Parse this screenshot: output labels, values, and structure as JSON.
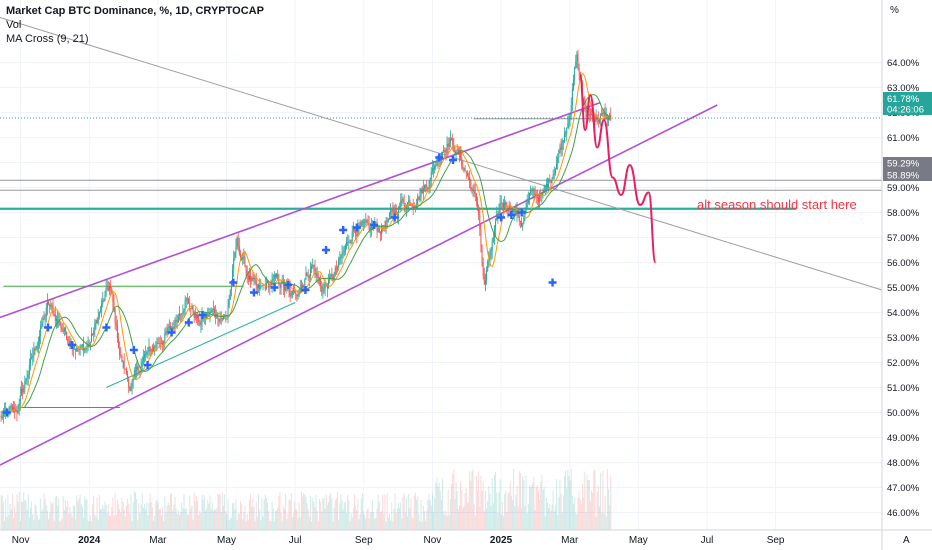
{
  "legend": {
    "title": "Market Cap BTC Dominance, %, 1D, CRYPTOCAP",
    "vol": "Vol",
    "ma_cross": "MA Cross (9, 21)"
  },
  "axis": {
    "unit": "%",
    "auto_label": "A"
  },
  "annotation_text": "alt season should start here",
  "price_tags": {
    "current_value": "61.78%",
    "countdown": "04:26:06",
    "level_1": "59.29%",
    "level_2": "58.89%"
  },
  "colors": {
    "up": "#26a69a",
    "down": "#ef5350",
    "channel": "#b24fd6",
    "support": "#26b0a0",
    "projection": "#e91e63",
    "annotation": "#f23645",
    "ma_fast": "#ff9800",
    "ma_slow": "#43a047",
    "cross": "#2962ff",
    "trend": "#9e9e9e"
  },
  "chart_data": {
    "type": "candlestick",
    "title": "Market Cap BTC Dominance, %, 1D, CRYPTOCAP",
    "ylabel": "%",
    "ylim": [
      45.3,
      66.5
    ],
    "y_ticks": [
      "46.00%",
      "47.00%",
      "48.00%",
      "49.00%",
      "50.00%",
      "51.00%",
      "52.00%",
      "53.00%",
      "54.00%",
      "55.00%",
      "56.00%",
      "57.00%",
      "58.00%",
      "59.00%",
      "60.00%",
      "61.00%",
      "62.00%",
      "63.00%",
      "64.00%"
    ],
    "x_ticks": [
      "Nov",
      "2024",
      "Mar",
      "May",
      "Jul",
      "Sep",
      "Nov",
      "2025",
      "Mar",
      "May",
      "Jul",
      "Sep"
    ],
    "x_tick_months": [
      0,
      2,
      4,
      6,
      8,
      10,
      12,
      14,
      16,
      18,
      20,
      22
    ],
    "x_range_months": [
      -0.6,
      25.1
    ],
    "last_month": 17.2,
    "price_path": [
      [
        -0.6,
        49.8
      ],
      [
        -0.1,
        50.1
      ],
      [
        0.3,
        52.0
      ],
      [
        0.8,
        54.3
      ],
      [
        1.3,
        53.2
      ],
      [
        1.7,
        52.5
      ],
      [
        2.0,
        52.7
      ],
      [
        2.3,
        54.0
      ],
      [
        2.6,
        55.1
      ],
      [
        2.9,
        52.3
      ],
      [
        3.2,
        51.0
      ],
      [
        3.6,
        52.2
      ],
      [
        4.0,
        52.8
      ],
      [
        4.4,
        53.3
      ],
      [
        4.8,
        54.6
      ],
      [
        5.2,
        53.6
      ],
      [
        5.6,
        54.0
      ],
      [
        6.0,
        53.8
      ],
      [
        6.3,
        56.8
      ],
      [
        6.6,
        55.6
      ],
      [
        6.9,
        54.8
      ],
      [
        7.2,
        55.1
      ],
      [
        7.5,
        55.3
      ],
      [
        7.9,
        54.6
      ],
      [
        8.2,
        55.2
      ],
      [
        8.5,
        55.9
      ],
      [
        8.8,
        54.9
      ],
      [
        9.1,
        55.4
      ],
      [
        9.4,
        56.3
      ],
      [
        9.7,
        57.4
      ],
      [
        10.1,
        57.3
      ],
      [
        10.5,
        57.4
      ],
      [
        10.8,
        57.8
      ],
      [
        11.1,
        58.4
      ],
      [
        11.5,
        58.5
      ],
      [
        11.9,
        59.3
      ],
      [
        12.2,
        60.4
      ],
      [
        12.5,
        60.9
      ],
      [
        12.8,
        60.2
      ],
      [
        13.1,
        59.2
      ],
      [
        13.35,
        58.0
      ],
      [
        13.5,
        55.0
      ],
      [
        13.7,
        56.4
      ],
      [
        14.0,
        58.4
      ],
      [
        14.3,
        58.3
      ],
      [
        14.6,
        57.6
      ],
      [
        14.9,
        58.8
      ],
      [
        15.2,
        58.6
      ],
      [
        15.5,
        59.6
      ],
      [
        15.8,
        60.9
      ],
      [
        16.0,
        62.1
      ],
      [
        16.2,
        64.2
      ],
      [
        16.45,
        62.0
      ],
      [
        16.8,
        61.8
      ],
      [
        17.2,
        61.78
      ]
    ],
    "price_noise": 0.42,
    "cross_markers": [
      [
        -0.4,
        50.0
      ],
      [
        0.8,
        53.4
      ],
      [
        1.5,
        52.7
      ],
      [
        2.5,
        53.4
      ],
      [
        3.3,
        52.5
      ],
      [
        3.7,
        51.9
      ],
      [
        4.4,
        53.2
      ],
      [
        4.9,
        53.6
      ],
      [
        5.3,
        53.9
      ],
      [
        6.2,
        55.2
      ],
      [
        6.8,
        54.8
      ],
      [
        7.4,
        55.0
      ],
      [
        7.8,
        55.1
      ],
      [
        8.3,
        54.9
      ],
      [
        8.9,
        56.5
      ],
      [
        9.4,
        57.3
      ],
      [
        9.8,
        57.4
      ],
      [
        10.3,
        57.5
      ],
      [
        10.9,
        57.8
      ],
      [
        12.2,
        60.2
      ],
      [
        12.6,
        60.1
      ],
      [
        14.0,
        57.8
      ],
      [
        14.3,
        57.9
      ],
      [
        14.6,
        58.0
      ],
      [
        15.5,
        55.2
      ]
    ],
    "horizontal_levels": [
      {
        "name": "support-zone",
        "value": 58.15,
        "from_month": -0.6,
        "to_month": 22.6
      },
      {
        "name": "level-59.29",
        "value": 59.29,
        "from_month": -0.6,
        "to_month": 25.1
      },
      {
        "name": "level-58.89",
        "value": 58.89,
        "from_month": -0.6,
        "to_month": 25.1
      },
      {
        "name": "range-top",
        "value": 55.05,
        "from_month": -0.5,
        "to_month": 6.5
      },
      {
        "name": "range-bottom",
        "value": 50.2,
        "from_month": 0.0,
        "to_month": 2.9
      },
      {
        "name": "peak-line",
        "value": 61.75,
        "from_month": 13.2,
        "to_month": 17.2
      }
    ],
    "channel_upper": [
      [
        -0.6,
        53.8
      ],
      [
        16.9,
        62.4
      ]
    ],
    "channel_lower": [
      [
        -0.6,
        47.9
      ],
      [
        20.3,
        62.3
      ]
    ],
    "trend_line": [
      [
        -0.6,
        65.8
      ],
      [
        25.1,
        54.9
      ]
    ],
    "support_line": [
      [
        2.5,
        51.0
      ],
      [
        8.0,
        54.4
      ]
    ],
    "projection_path": [
      [
        16.3,
        63.5
      ],
      [
        16.45,
        61.3
      ],
      [
        16.6,
        62.7
      ],
      [
        16.8,
        60.6
      ],
      [
        17.0,
        61.7
      ],
      [
        17.25,
        59.4
      ],
      [
        17.5,
        58.7
      ],
      [
        17.75,
        59.9
      ],
      [
        18.05,
        58.3
      ],
      [
        18.3,
        58.8
      ],
      [
        18.5,
        56.0
      ]
    ],
    "volume_ymax": 1.0
  }
}
